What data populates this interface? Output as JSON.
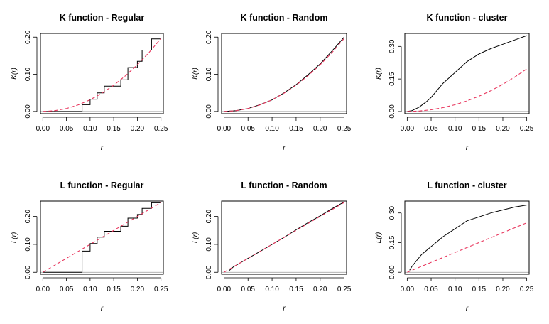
{
  "colors": {
    "observed": "#000000",
    "theoretical": "#e8365d",
    "frame": "#000000",
    "baseline": "#999999"
  },
  "chart_data": [
    {
      "type": "line",
      "title": "K function - Regular",
      "xlabel": "r",
      "ylabel": "K(r)",
      "xlim": [
        -0.005,
        0.255
      ],
      "ylim": [
        -0.006,
        0.21
      ],
      "xticks": [
        "0.00",
        "0.05",
        "0.10",
        "0.15",
        "0.20",
        "0.25"
      ],
      "yticks": [
        "0.00",
        "0.10",
        "0.20"
      ],
      "series": [
        {
          "style": "step",
          "x": [
            0,
            0.083,
            0.083,
            0.1,
            0.1,
            0.115,
            0.115,
            0.13,
            0.13,
            0.15,
            0.15,
            0.165,
            0.165,
            0.18,
            0.18,
            0.19,
            0.19,
            0.2,
            0.2,
            0.21,
            0.21,
            0.23,
            0.23,
            0.25
          ],
          "y": [
            0,
            0,
            0.018,
            0.018,
            0.033,
            0.033,
            0.05,
            0.05,
            0.068,
            0.068,
            0.068,
            0.068,
            0.085,
            0.085,
            0.118,
            0.118,
            0.118,
            0.118,
            0.135,
            0.135,
            0.165,
            0.165,
            0.195,
            0.195
          ]
        },
        {
          "style": "dashed",
          "x": [
            0,
            0.025,
            0.05,
            0.075,
            0.1,
            0.125,
            0.15,
            0.175,
            0.2,
            0.225,
            0.25
          ],
          "y": [
            0,
            0.00196,
            0.00785,
            0.01767,
            0.03142,
            0.04909,
            0.07069,
            0.09621,
            0.12566,
            0.15904,
            0.19635
          ]
        }
      ]
    },
    {
      "type": "line",
      "title": "K function - Random",
      "xlabel": "r",
      "ylabel": "K(r)",
      "xlim": [
        -0.005,
        0.255
      ],
      "ylim": [
        -0.006,
        0.21
      ],
      "xticks": [
        "0.00",
        "0.05",
        "0.10",
        "0.15",
        "0.20",
        "0.25"
      ],
      "yticks": [
        "0.00",
        "0.10",
        "0.20"
      ],
      "series": [
        {
          "style": "solid",
          "x": [
            0,
            0.025,
            0.05,
            0.075,
            0.1,
            0.125,
            0.15,
            0.175,
            0.2,
            0.225,
            0.25
          ],
          "y": [
            0,
            0.002,
            0.008,
            0.018,
            0.031,
            0.05,
            0.072,
            0.099,
            0.128,
            0.163,
            0.2
          ]
        },
        {
          "style": "dashed",
          "x": [
            0,
            0.025,
            0.05,
            0.075,
            0.1,
            0.125,
            0.15,
            0.175,
            0.2,
            0.225,
            0.25
          ],
          "y": [
            0,
            0.00196,
            0.00785,
            0.01767,
            0.03142,
            0.04909,
            0.07069,
            0.09621,
            0.12566,
            0.15904,
            0.19635
          ]
        }
      ]
    },
    {
      "type": "line",
      "title": "K function - cluster",
      "xlabel": "r",
      "ylabel": "K(r)",
      "xlim": [
        -0.005,
        0.255
      ],
      "ylim": [
        -0.01,
        0.36
      ],
      "xticks": [
        "0.00",
        "0.05",
        "0.10",
        "0.15",
        "0.20",
        "0.25"
      ],
      "yticks": [
        "0.00",
        "0.15",
        "0.30"
      ],
      "series": [
        {
          "style": "solid",
          "x": [
            0,
            0.01,
            0.025,
            0.04,
            0.05,
            0.075,
            0.1,
            0.125,
            0.15,
            0.175,
            0.2,
            0.225,
            0.25
          ],
          "y": [
            0,
            0.004,
            0.02,
            0.045,
            0.065,
            0.13,
            0.18,
            0.23,
            0.265,
            0.29,
            0.31,
            0.33,
            0.35
          ]
        },
        {
          "style": "dashed",
          "x": [
            0,
            0.025,
            0.05,
            0.075,
            0.1,
            0.125,
            0.15,
            0.175,
            0.2,
            0.225,
            0.25
          ],
          "y": [
            0,
            0.00196,
            0.00785,
            0.01767,
            0.03142,
            0.04909,
            0.07069,
            0.09621,
            0.12566,
            0.15904,
            0.19635
          ]
        }
      ]
    },
    {
      "type": "line",
      "title": "L function - Regular",
      "xlabel": "r",
      "ylabel": "L(r)",
      "xlim": [
        -0.005,
        0.255
      ],
      "ylim": [
        -0.007,
        0.255
      ],
      "xticks": [
        "0.00",
        "0.05",
        "0.10",
        "0.15",
        "0.20",
        "0.25"
      ],
      "yticks": [
        "0.00",
        "0.10",
        "0.20"
      ],
      "series": [
        {
          "style": "step",
          "x": [
            0,
            0.083,
            0.083,
            0.1,
            0.1,
            0.115,
            0.115,
            0.13,
            0.13,
            0.15,
            0.15,
            0.165,
            0.165,
            0.18,
            0.18,
            0.19,
            0.19,
            0.2,
            0.2,
            0.21,
            0.21,
            0.23,
            0.23,
            0.25
          ],
          "y": [
            0,
            0,
            0.076,
            0.076,
            0.103,
            0.103,
            0.126,
            0.126,
            0.147,
            0.147,
            0.147,
            0.147,
            0.165,
            0.165,
            0.194,
            0.194,
            0.194,
            0.194,
            0.207,
            0.207,
            0.229,
            0.229,
            0.249,
            0.249
          ]
        },
        {
          "style": "dashed",
          "x": [
            0,
            0.25
          ],
          "y": [
            0,
            0.25
          ]
        }
      ]
    },
    {
      "type": "line",
      "title": "L function - Random",
      "xlabel": "r",
      "ylabel": "L(r)",
      "xlim": [
        -0.005,
        0.255
      ],
      "ylim": [
        -0.007,
        0.255
      ],
      "xticks": [
        "0.00",
        "0.05",
        "0.10",
        "0.15",
        "0.20",
        "0.25"
      ],
      "yticks": [
        "0.00",
        "0.10",
        "0.20"
      ],
      "series": [
        {
          "style": "solid",
          "x": [
            0.01,
            0.02,
            0.03,
            0.05,
            0.075,
            0.1,
            0.125,
            0.15,
            0.175,
            0.2,
            0.225,
            0.25
          ],
          "y": [
            0.005,
            0.02,
            0.03,
            0.05,
            0.075,
            0.1,
            0.125,
            0.152,
            0.178,
            0.202,
            0.228,
            0.252
          ]
        },
        {
          "style": "dashed",
          "x": [
            0,
            0.25
          ],
          "y": [
            0,
            0.25
          ]
        }
      ]
    },
    {
      "type": "line",
      "title": "L function - cluster",
      "xlabel": "r",
      "ylabel": "L(r)",
      "xlim": [
        -0.005,
        0.255
      ],
      "ylim": [
        -0.01,
        0.36
      ],
      "xticks": [
        "0.00",
        "0.05",
        "0.10",
        "0.15",
        "0.20",
        "0.25"
      ],
      "yticks": [
        "0.00",
        "0.15",
        "0.30"
      ],
      "series": [
        {
          "style": "solid",
          "x": [
            0.005,
            0.01,
            0.02,
            0.03,
            0.05,
            0.075,
            0.1,
            0.125,
            0.15,
            0.175,
            0.2,
            0.225,
            0.25
          ],
          "y": [
            0.01,
            0.03,
            0.06,
            0.09,
            0.13,
            0.18,
            0.22,
            0.26,
            0.28,
            0.3,
            0.315,
            0.33,
            0.34
          ]
        },
        {
          "style": "dashed",
          "x": [
            0,
            0.25
          ],
          "y": [
            0,
            0.25
          ]
        }
      ]
    }
  ]
}
